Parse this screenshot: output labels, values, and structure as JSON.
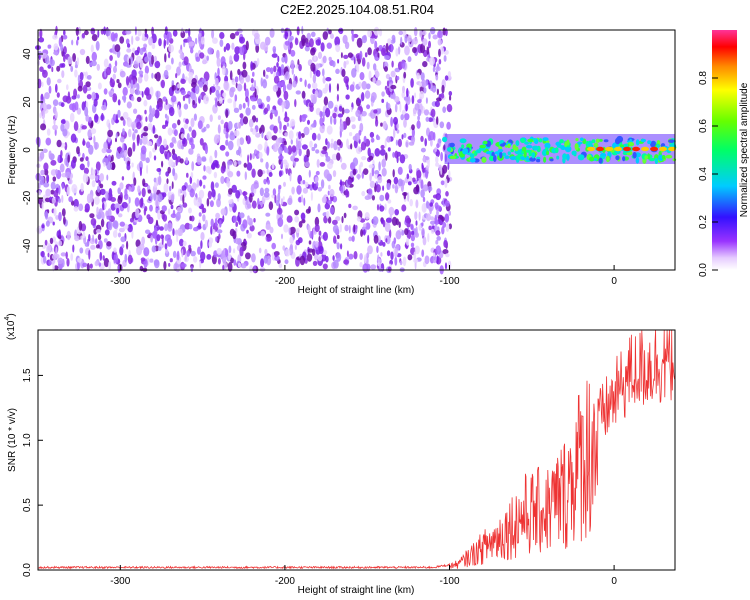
{
  "chart_data": [
    {
      "type": "heatmap",
      "title": "C2E2.2025.104.08.51.R04",
      "xlabel": "Height of straight line (km)",
      "ylabel": "Frequency (Hz)",
      "xlim": [
        -350,
        37
      ],
      "ylim": [
        -50,
        50
      ],
      "xticks": [
        -300,
        -200,
        -100,
        0
      ],
      "yticks": [
        -40,
        -20,
        0,
        20,
        40
      ],
      "colorbar": {
        "label": "Normalized spectral amplitude",
        "range": [
          0,
          1
        ],
        "ticks": [
          "0.0",
          "0.2",
          "0.4",
          "0.6",
          "0.8"
        ],
        "colormap": "rainbow (white-violet-blue-cyan-green-yellow-red)"
      },
      "features": {
        "noise_region_x": [
          -350,
          -103
        ],
        "signal_band_x": [
          -103,
          37
        ],
        "signal_center_frequency": 0,
        "strong_peak_x": [
          -14,
          37
        ]
      },
      "grid": false
    },
    {
      "type": "line",
      "xlabel": "Height of straight line (km)",
      "ylabel": "SNR (10 * v/v)",
      "scale_note": "(x10",
      "scale_exp": "4",
      "xlim": [
        -350,
        37
      ],
      "ylim": [
        0,
        1.85
      ],
      "xticks": [
        -300,
        -200,
        -100,
        0
      ],
      "yticks": [
        "0.0",
        "0.5",
        "1.0",
        "1.5"
      ],
      "series": [
        {
          "color": "#ee3333",
          "profile": [
            [
              -350,
              0.02
            ],
            [
              -110,
              0.02
            ],
            [
              -95,
              0.05
            ],
            [
              -85,
              0.15
            ],
            [
              -70,
              0.3
            ],
            [
              -55,
              0.5
            ],
            [
              -40,
              0.55
            ],
            [
              -30,
              0.7
            ],
            [
              -20,
              1.0
            ],
            [
              -10,
              1.2
            ],
            [
              0,
              1.4
            ],
            [
              10,
              1.6
            ],
            [
              20,
              1.65
            ],
            [
              37,
              1.72
            ]
          ]
        }
      ],
      "grid": false
    }
  ]
}
